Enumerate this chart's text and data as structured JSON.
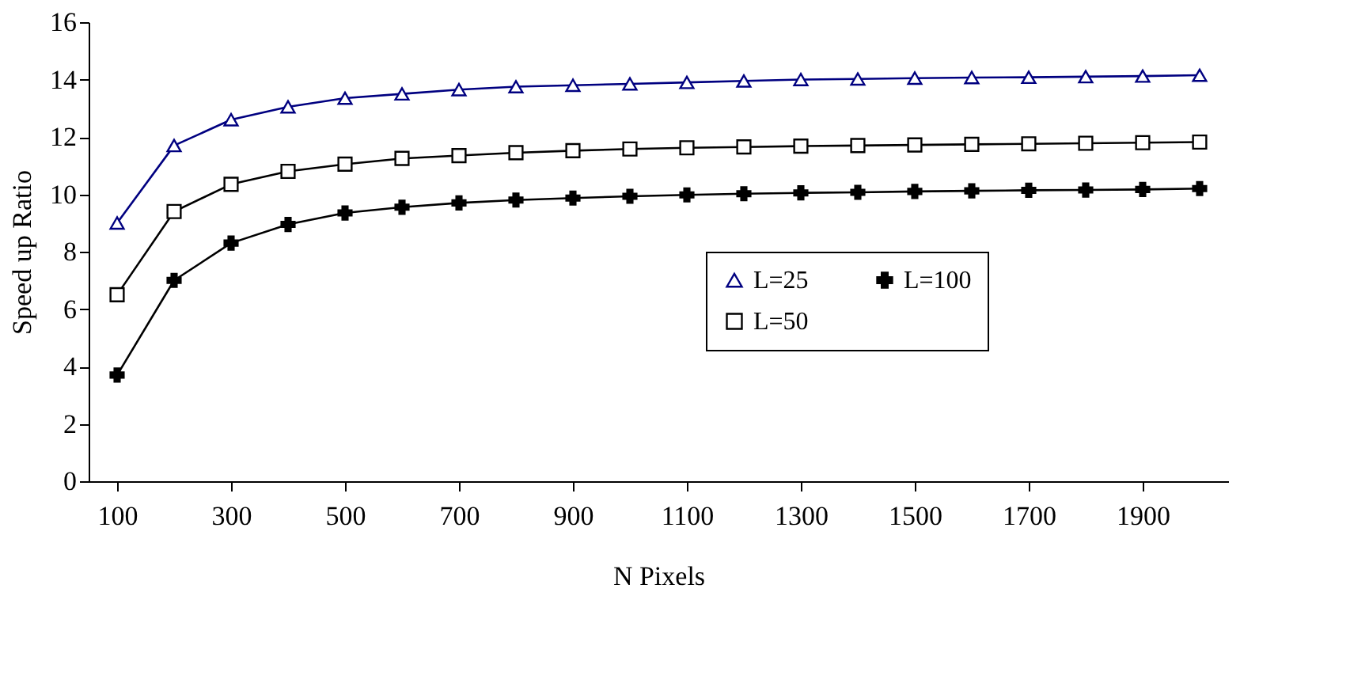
{
  "chart_data": {
    "type": "line",
    "xlabel": "N Pixels",
    "ylabel": "Speed up Ratio",
    "x": [
      100,
      200,
      300,
      400,
      500,
      600,
      700,
      800,
      900,
      1000,
      1100,
      1200,
      1300,
      1400,
      1500,
      1600,
      1700,
      1800,
      1900,
      2000
    ],
    "xlim": [
      50,
      2050
    ],
    "xticks": [
      100,
      300,
      500,
      700,
      900,
      1100,
      1300,
      1500,
      1700,
      1900
    ],
    "ylim": [
      0,
      16
    ],
    "yticks": [
      0,
      2,
      4,
      6,
      8,
      10,
      12,
      14,
      16
    ],
    "series": [
      {
        "name": "L=25",
        "color": "#000080",
        "marker": "triangle",
        "values": [
          9.0,
          11.7,
          12.6,
          13.05,
          13.35,
          13.5,
          13.65,
          13.75,
          13.8,
          13.85,
          13.9,
          13.95,
          14.0,
          14.02,
          14.05,
          14.07,
          14.08,
          14.1,
          14.12,
          14.15
        ]
      },
      {
        "name": "L=50",
        "color": "#000000",
        "marker": "square",
        "values": [
          6.5,
          9.4,
          10.35,
          10.8,
          11.05,
          11.25,
          11.35,
          11.45,
          11.52,
          11.58,
          11.62,
          11.65,
          11.68,
          11.7,
          11.72,
          11.74,
          11.76,
          11.78,
          11.8,
          11.82
        ]
      },
      {
        "name": "L=100",
        "color": "#000000",
        "marker": "cross",
        "values": [
          3.7,
          7.0,
          8.3,
          8.95,
          9.35,
          9.55,
          9.7,
          9.8,
          9.87,
          9.93,
          9.98,
          10.02,
          10.05,
          10.07,
          10.1,
          10.12,
          10.14,
          10.15,
          10.17,
          10.2
        ]
      }
    ],
    "grid": false,
    "legend": "bottom right",
    "line_style": "solid"
  }
}
